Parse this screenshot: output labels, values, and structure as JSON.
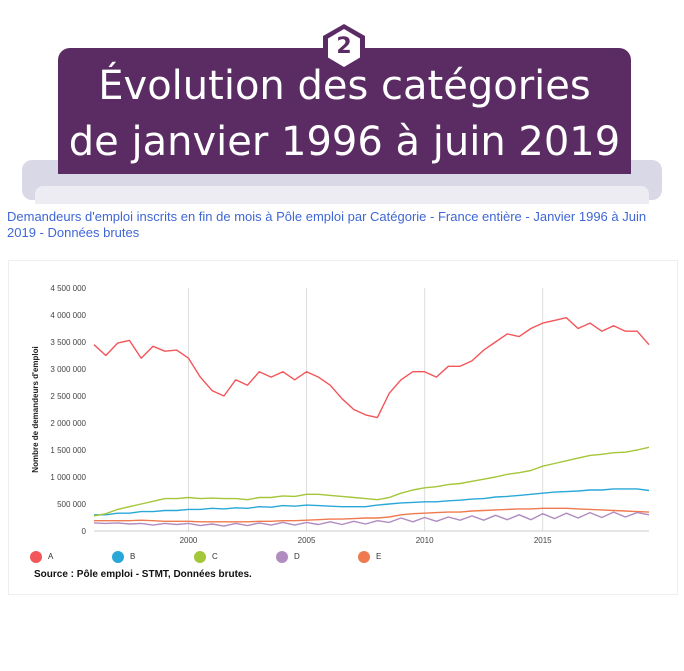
{
  "banner": {
    "number": "2",
    "title_line1": "Évolution des catégories",
    "title_line2": "de janvier 1996 à juin 2019"
  },
  "colors": {
    "banner": "#5b2c63",
    "subtitle": "#3f67d6"
  },
  "subtitle": "Demandeurs d'emploi inscrits en fin de mois à Pôle emploi par Catégorie - France entière - Janvier 1996 à Juin 2019 - Données brutes",
  "source": "Source : Pôle emploi - STMT, Données brutes.",
  "chart_data": {
    "type": "line",
    "title": "",
    "xlabel": "",
    "ylabel": "Nombre de demandeurs d'emploi",
    "xlim": [
      1996.0,
      2019.5
    ],
    "ylim": [
      0,
      4500000
    ],
    "x_ticks": [
      2000,
      2005,
      2010,
      2015
    ],
    "x_tick_labels": [
      "2000",
      "2005",
      "2010",
      "2015"
    ],
    "y_ticks": [
      0,
      500000,
      1000000,
      1500000,
      2000000,
      2500000,
      3000000,
      3500000,
      4000000,
      4500000
    ],
    "y_tick_labels": [
      "0",
      "500 000",
      "1 000 000",
      "1 500 000",
      "2 000 000",
      "2 500 000",
      "3 000 000",
      "3 500 000",
      "4 000 000",
      "4 500 000"
    ],
    "grid": {
      "vertical": true,
      "horizontal": false
    },
    "legend_position": "bottom-left",
    "x": [
      1996.0,
      1996.5,
      1997.0,
      1997.5,
      1998.0,
      1998.5,
      1999.0,
      1999.5,
      2000.0,
      2000.5,
      2001.0,
      2001.5,
      2002.0,
      2002.5,
      2003.0,
      2003.5,
      2004.0,
      2004.5,
      2005.0,
      2005.5,
      2006.0,
      2006.5,
      2007.0,
      2007.5,
      2008.0,
      2008.5,
      2009.0,
      2009.5,
      2010.0,
      2010.5,
      2011.0,
      2011.5,
      2012.0,
      2012.5,
      2013.0,
      2013.5,
      2014.0,
      2014.5,
      2015.0,
      2015.5,
      2016.0,
      2016.5,
      2017.0,
      2017.5,
      2018.0,
      2018.5,
      2019.0,
      2019.5
    ],
    "series": [
      {
        "name": "A",
        "color": "#f2555a",
        "values": [
          3450000,
          3250000,
          3480000,
          3530000,
          3200000,
          3420000,
          3330000,
          3350000,
          3200000,
          2850000,
          2600000,
          2500000,
          2800000,
          2700000,
          2950000,
          2850000,
          2950000,
          2800000,
          2950000,
          2850000,
          2700000,
          2450000,
          2250000,
          2150000,
          2100000,
          2550000,
          2800000,
          2950000,
          2950000,
          2850000,
          3050000,
          3050000,
          3150000,
          3350000,
          3500000,
          3650000,
          3600000,
          3750000,
          3850000,
          3900000,
          3950000,
          3750000,
          3850000,
          3700000,
          3800000,
          3700000,
          3700000,
          3450000
        ]
      },
      {
        "name": "B",
        "color": "#29a8d8",
        "values": [
          300000,
          300000,
          330000,
          330000,
          360000,
          360000,
          380000,
          380000,
          400000,
          400000,
          420000,
          410000,
          430000,
          420000,
          450000,
          440000,
          470000,
          460000,
          480000,
          470000,
          460000,
          450000,
          450000,
          450000,
          480000,
          500000,
          520000,
          530000,
          540000,
          540000,
          560000,
          570000,
          590000,
          600000,
          630000,
          640000,
          660000,
          680000,
          700000,
          720000,
          730000,
          740000,
          760000,
          760000,
          780000,
          780000,
          780000,
          750000
        ]
      },
      {
        "name": "C",
        "color": "#a4c639",
        "values": [
          280000,
          320000,
          400000,
          450000,
          500000,
          550000,
          600000,
          600000,
          620000,
          600000,
          610000,
          600000,
          600000,
          580000,
          620000,
          620000,
          650000,
          640000,
          680000,
          680000,
          660000,
          640000,
          620000,
          600000,
          580000,
          620000,
          700000,
          760000,
          800000,
          820000,
          860000,
          880000,
          920000,
          960000,
          1000000,
          1050000,
          1080000,
          1120000,
          1200000,
          1250000,
          1300000,
          1350000,
          1400000,
          1420000,
          1450000,
          1460000,
          1500000,
          1550000
        ]
      },
      {
        "name": "D",
        "color": "#b08cc0",
        "values": [
          150000,
          140000,
          150000,
          130000,
          140000,
          110000,
          140000,
          120000,
          140000,
          100000,
          130000,
          90000,
          140000,
          100000,
          150000,
          110000,
          160000,
          110000,
          160000,
          120000,
          170000,
          120000,
          180000,
          130000,
          190000,
          160000,
          240000,
          170000,
          250000,
          180000,
          260000,
          200000,
          280000,
          200000,
          290000,
          210000,
          300000,
          210000,
          320000,
          230000,
          330000,
          240000,
          340000,
          250000,
          350000,
          260000,
          340000,
          300000
        ]
      },
      {
        "name": "E",
        "color": "#f07a4f",
        "values": [
          190000,
          190000,
          190000,
          190000,
          200000,
          190000,
          180000,
          180000,
          180000,
          170000,
          170000,
          170000,
          170000,
          170000,
          180000,
          180000,
          190000,
          190000,
          200000,
          210000,
          220000,
          220000,
          230000,
          240000,
          240000,
          260000,
          300000,
          320000,
          330000,
          340000,
          350000,
          350000,
          370000,
          380000,
          390000,
          400000,
          410000,
          410000,
          420000,
          420000,
          420000,
          410000,
          400000,
          390000,
          380000,
          370000,
          360000,
          350000
        ]
      }
    ]
  }
}
